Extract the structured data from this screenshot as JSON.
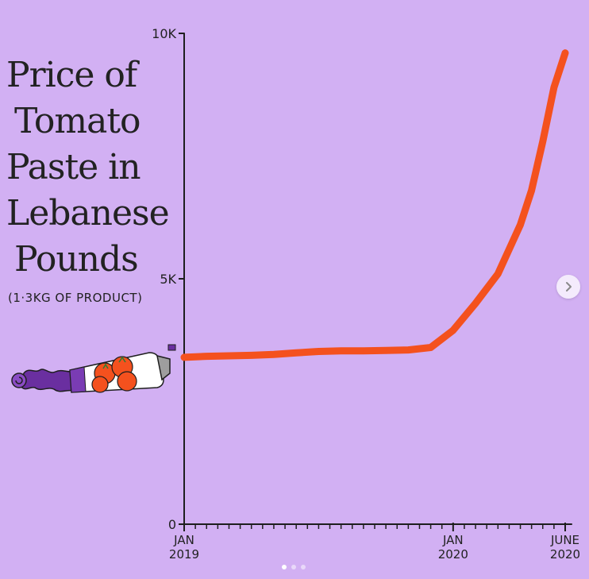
{
  "chart_data": {
    "type": "line",
    "title_lines": [
      "Price of",
      "Tomato",
      "Paste in",
      "Lebanese",
      "Pounds"
    ],
    "subtitle": "(1·3KG OF PRODUCT)",
    "y_ticks": [
      {
        "value": 0,
        "label": "0"
      },
      {
        "value": 5000,
        "label": "5K"
      },
      {
        "value": 10000,
        "label": "10K"
      }
    ],
    "ylim": [
      0,
      10000
    ],
    "x_ticks": [
      {
        "month": 0,
        "line1": "JAN",
        "line2": "2019"
      },
      {
        "month": 12,
        "line1": "JAN",
        "line2": "2020"
      },
      {
        "month": 17,
        "line1": "JUNE",
        "line2": "2020"
      }
    ],
    "xlim": [
      0,
      17
    ],
    "series": [
      {
        "color": "#f4511e",
        "points": [
          [
            0,
            3400
          ],
          [
            1,
            3420
          ],
          [
            2,
            3430
          ],
          [
            3,
            3440
          ],
          [
            4,
            3460
          ],
          [
            5,
            3490
          ],
          [
            6,
            3520
          ],
          [
            7,
            3530
          ],
          [
            8,
            3530
          ],
          [
            9,
            3540
          ],
          [
            10,
            3550
          ],
          [
            11,
            3600
          ],
          [
            12,
            3950
          ],
          [
            13,
            4500
          ],
          [
            14,
            5100
          ],
          [
            15,
            6100
          ],
          [
            15.5,
            6800
          ],
          [
            16,
            7800
          ],
          [
            16.5,
            8900
          ],
          [
            17,
            9600
          ]
        ]
      }
    ],
    "grid": false,
    "minor_x_ticks_per_month": 2,
    "tube_icon": "tomato-paste-tube-icon"
  },
  "carousel": {
    "next_icon": "chevron-right-icon",
    "slides": 3,
    "active_slide": 1
  }
}
